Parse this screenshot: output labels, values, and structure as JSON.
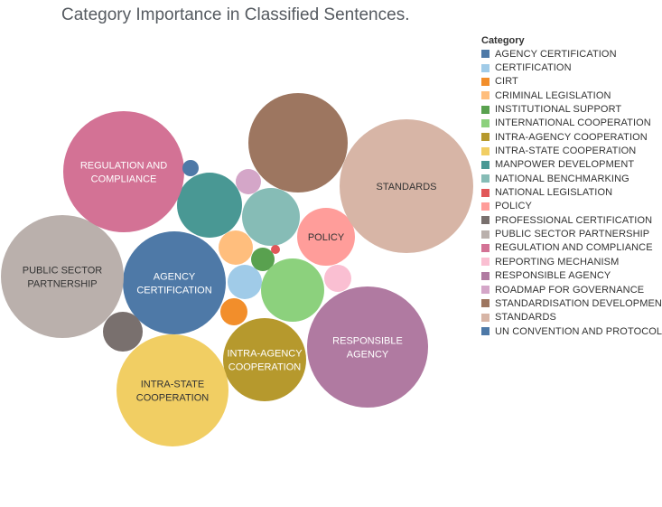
{
  "chart_data": {
    "type": "bubble",
    "title": "Category Importance in Classified Sentences.",
    "legend": {
      "title": "Category",
      "position": "right"
    },
    "categories": [
      {
        "name": "AGENCY CERTIFICATION",
        "color": "#4e79a7",
        "value": 3249,
        "label_lines": [
          "AGENCY",
          "CERTIFICATION"
        ]
      },
      {
        "name": "CERTIFICATION",
        "color": "#a0cbe8",
        "value": 361
      },
      {
        "name": "CIRT",
        "color": "#f28e2b",
        "value": 225
      },
      {
        "name": "CRIMINAL LEGISLATION",
        "color": "#ffbe7d",
        "value": 361
      },
      {
        "name": "INSTITUTIONAL SUPPORT",
        "color": "#59a14f",
        "value": 169
      },
      {
        "name": "INTERNATIONAL COOPERATION",
        "color": "#8cd17d",
        "value": 1225
      },
      {
        "name": "INTRA-AGENCY COOPERATION",
        "color": "#b6992d",
        "value": 2116,
        "label_lines": [
          "INTRA-AGENCY",
          "COOPERATION"
        ]
      },
      {
        "name": "INTRA-STATE COOPERATION",
        "color": "#f1ce63",
        "value": 3844,
        "label_lines": [
          "INTRA-STATE",
          "COOPERATION"
        ]
      },
      {
        "name": "MANPOWER DEVELOPMENT",
        "color": "#499894",
        "value": 1296
      },
      {
        "name": "NATIONAL BENCHMARKING",
        "color": "#86bcb6",
        "value": 1024
      },
      {
        "name": "NATIONAL LEGISLATION",
        "color": "#e15759",
        "value": 25
      },
      {
        "name": "POLICY",
        "color": "#ff9d9a",
        "value": 1024,
        "label_lines": [
          "POLICY"
        ]
      },
      {
        "name": "PROFESSIONAL CERTIFICATION",
        "color": "#79706e",
        "value": 484
      },
      {
        "name": "PUBLIC SECTOR PARTNERSHIP",
        "color": "#bab0ac",
        "value": 4624,
        "label_lines": [
          "PUBLIC SECTOR",
          "PARTNERSHIP"
        ]
      },
      {
        "name": "REGULATION AND COMPLIANCE",
        "color": "#d37295",
        "value": 4489,
        "label_lines": [
          "REGULATION AND",
          "COMPLIANCE"
        ]
      },
      {
        "name": "REPORTING MECHANISM",
        "color": "#fabfd2",
        "value": 225
      },
      {
        "name": "RESPONSIBLE AGENCY",
        "color": "#b07aa1",
        "value": 4489,
        "label_lines": [
          "RESPONSIBLE",
          "AGENCY"
        ]
      },
      {
        "name": "ROADMAP FOR GOVERNANCE",
        "color": "#d4a6c8",
        "value": 196
      },
      {
        "name": "STANDARDISATION DEVELOPMENT",
        "color": "#9d7660",
        "value": 3025
      },
      {
        "name": "STANDARDS",
        "color": "#d7b5a6",
        "value": 5476,
        "label_lines": [
          "STANDARDS"
        ]
      },
      {
        "name": "UN CONVENTION AND PROTOCOL",
        "color": "#4e79a7",
        "value": 81
      }
    ]
  }
}
